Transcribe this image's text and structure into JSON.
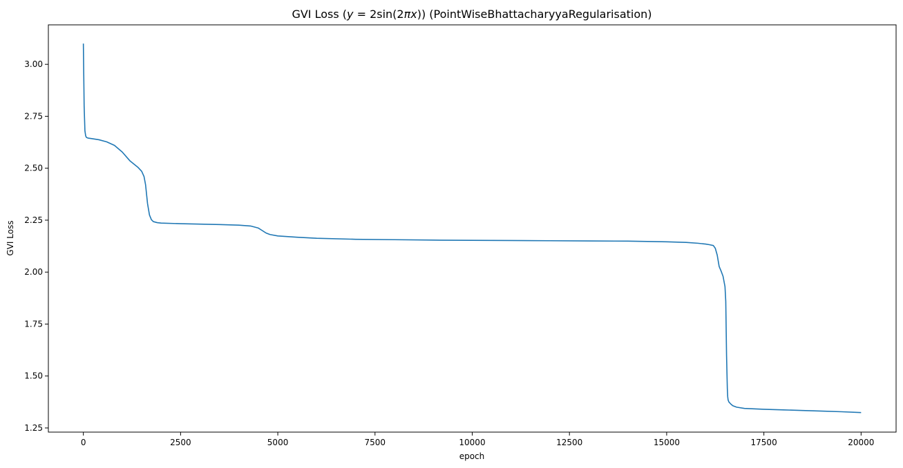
{
  "chart_data": {
    "type": "line",
    "title": "GVI Loss (y = 2sin(2πx)) (PointWiseBhattacharyyaRegularisation)",
    "title_parts": {
      "prefix": "GVI Loss (",
      "y_var": "y",
      "equals": " = 2sin(2",
      "pi_x": "πx",
      "suffix": ")) (PointWiseBhattacharyyaRegularisation)"
    },
    "xlabel": "epoch",
    "ylabel": "GVI Loss",
    "xlim": [
      -900,
      20900
    ],
    "ylim": [
      1.23,
      3.19
    ],
    "xticks": [
      0,
      2500,
      5000,
      7500,
      10000,
      12500,
      15000,
      17500,
      20000
    ],
    "xtick_labels": [
      "0",
      "2500",
      "5000",
      "7500",
      "10000",
      "12500",
      "15000",
      "17500",
      "20000"
    ],
    "yticks": [
      1.25,
      1.5,
      1.75,
      2.0,
      2.25,
      2.5,
      2.75,
      3.0
    ],
    "ytick_labels": [
      "1.25",
      "1.50",
      "1.75",
      "2.00",
      "2.25",
      "2.50",
      "2.75",
      "3.00"
    ],
    "grid": false,
    "series": [
      {
        "color": "#1f77b4",
        "x": [
          0,
          10,
          20,
          40,
          60,
          80,
          120,
          200,
          400,
          600,
          800,
          1000,
          1200,
          1400,
          1500,
          1560,
          1600,
          1650,
          1700,
          1750,
          1800,
          1900,
          2000,
          2500,
          3000,
          3500,
          4000,
          4300,
          4500,
          4600,
          4700,
          4800,
          5000,
          5500,
          6000,
          7000,
          8000,
          9000,
          10000,
          11000,
          12000,
          13000,
          14000,
          15000,
          15500,
          15800,
          16000,
          16100,
          16200,
          16250,
          16300,
          16350,
          16400,
          16450,
          16500,
          16520,
          16540,
          16560,
          16570,
          16580,
          16600,
          16650,
          16700,
          16800,
          17000,
          17500,
          18000,
          18500,
          19000,
          19500,
          20000
        ],
        "y": [
          3.1,
          2.95,
          2.8,
          2.68,
          2.655,
          2.648,
          2.645,
          2.643,
          2.637,
          2.627,
          2.61,
          2.578,
          2.535,
          2.505,
          2.485,
          2.46,
          2.42,
          2.33,
          2.275,
          2.252,
          2.243,
          2.238,
          2.236,
          2.233,
          2.231,
          2.229,
          2.226,
          2.222,
          2.212,
          2.2,
          2.188,
          2.181,
          2.174,
          2.168,
          2.163,
          2.158,
          2.156,
          2.154,
          2.153,
          2.152,
          2.151,
          2.15,
          2.149,
          2.146,
          2.143,
          2.139,
          2.135,
          2.132,
          2.128,
          2.115,
          2.082,
          2.027,
          2.005,
          1.98,
          1.93,
          1.86,
          1.6,
          1.44,
          1.4,
          1.385,
          1.375,
          1.365,
          1.357,
          1.35,
          1.344,
          1.34,
          1.337,
          1.334,
          1.331,
          1.328,
          1.324
        ]
      }
    ]
  }
}
